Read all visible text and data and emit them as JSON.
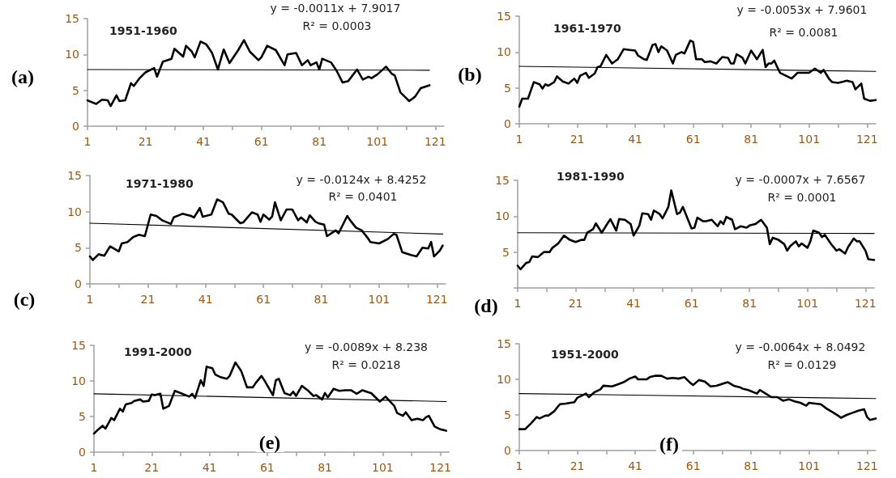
{
  "chart_data": [
    {
      "type": "line",
      "title": "1951-1960",
      "xlim": [
        1,
        124
      ],
      "xticks": [
        1,
        {
          "value": 11,
          "label": null
        },
        21,
        {
          "value": 31,
          "label": null
        },
        41,
        {
          "value": 51,
          "label": null
        },
        61,
        {
          "value": 71,
          "label": null
        },
        81,
        {
          "value": 91,
          "label": null
        },
        101,
        {
          "value": 111,
          "label": null
        },
        121
      ],
      "ylim": [
        0,
        15
      ],
      "yticks": [
        0,
        5,
        10,
        15
      ],
      "grid": false,
      "marker": "none",
      "series": [
        {
          "color": "#000000",
          "x": [
            1,
            4,
            6,
            8,
            9,
            11,
            12,
            14,
            16,
            17,
            19,
            21,
            24,
            25,
            27,
            30,
            31,
            34,
            35,
            37,
            38,
            40,
            42,
            44,
            46,
            48,
            50,
            53,
            55,
            57,
            60,
            61,
            63,
            66,
            69,
            70,
            73,
            75,
            77,
            78,
            80,
            81,
            82,
            85,
            87,
            89,
            91,
            94,
            96,
            98,
            99,
            101,
            104,
            106,
            107,
            109,
            111,
            112,
            114,
            116,
            119
          ],
          "values": [
            3.6,
            3.1,
            3.7,
            3.6,
            2.8,
            4.3,
            3.5,
            3.6,
            6.0,
            5.6,
            6.7,
            7.5,
            8.1,
            6.9,
            9.0,
            9.4,
            10.8,
            9.7,
            11.2,
            10.4,
            9.6,
            11.8,
            11.4,
            10.2,
            7.9,
            10.7,
            8.8,
            10.6,
            12.0,
            10.4,
            9.2,
            9.6,
            11.2,
            10.6,
            8.5,
            10.0,
            10.2,
            8.5,
            9.2,
            8.5,
            8.9,
            7.9,
            9.4,
            8.9,
            7.7,
            6.1,
            6.3,
            7.9,
            6.5,
            6.9,
            6.7,
            7.2,
            8.3,
            7.3,
            7.1,
            4.7,
            3.9,
            3.5,
            4.1,
            5.3,
            5.7
          ]
        },
        {
          "type": "line",
          "color": "#000000",
          "x": [
            1,
            119
          ],
          "values": [
            7.9,
            7.8
          ]
        }
      ],
      "annotations": [
        "y = -0.0011x + 7.9017",
        "R² = 0.0003",
        "(a)"
      ]
    },
    {
      "type": "line",
      "title": "1961-1970",
      "xlim": [
        1,
        124
      ],
      "xticks": [
        1,
        {
          "value": 11,
          "label": null
        },
        21,
        {
          "value": 31,
          "label": null
        },
        41,
        {
          "value": 51,
          "label": null
        },
        61,
        {
          "value": 71,
          "label": null
        },
        81,
        {
          "value": 91,
          "label": null
        },
        101,
        {
          "value": 111,
          "label": null
        },
        121
      ],
      "ylim": [
        0,
        15
      ],
      "yticks": [
        0,
        5,
        10,
        15
      ],
      "grid": false,
      "marker": "none",
      "series": [
        {
          "color": "#000000",
          "x": [
            1,
            2,
            4,
            6,
            8,
            9,
            10,
            11,
            13,
            14,
            16,
            18,
            20,
            21,
            22,
            24,
            25,
            27,
            28,
            29,
            31,
            33,
            35,
            37,
            39,
            41,
            42,
            44,
            45,
            47,
            48,
            49,
            50,
            52,
            54,
            55,
            57,
            58,
            60,
            61,
            62,
            64,
            65,
            67,
            69,
            71,
            73,
            74,
            75,
            76,
            78,
            79,
            81,
            83,
            85,
            86,
            87,
            88,
            89,
            90,
            91,
            93,
            95,
            97,
            99,
            101,
            103,
            105,
            106,
            108,
            109,
            111,
            113,
            114,
            116,
            117,
            119,
            120,
            122,
            124
          ],
          "values": [
            2.4,
            3.5,
            3.5,
            5.8,
            5.5,
            4.9,
            5.5,
            5.3,
            5.8,
            6.6,
            5.9,
            5.6,
            6.3,
            5.7,
            6.7,
            7.1,
            6.4,
            7.0,
            7.9,
            8.0,
            9.6,
            8.4,
            9.0,
            10.4,
            10.3,
            10.2,
            9.5,
            9.0,
            8.9,
            11.0,
            11.1,
            10.0,
            10.8,
            10.2,
            8.4,
            9.6,
            10.0,
            9.8,
            11.6,
            11.4,
            9.0,
            9.0,
            8.6,
            8.7,
            8.4,
            9.3,
            9.2,
            8.4,
            8.4,
            9.7,
            9.2,
            8.4,
            10.2,
            9.0,
            10.3,
            7.9,
            8.4,
            8.4,
            8.8,
            7.9,
            7.1,
            6.7,
            6.3,
            7.1,
            7.1,
            7.1,
            7.7,
            7.1,
            7.5,
            6.2,
            5.8,
            5.7,
            5.9,
            6.0,
            5.8,
            4.8,
            5.6,
            3.5,
            3.2,
            3.3
          ]
        },
        {
          "type": "line",
          "color": "#000000",
          "x": [
            1,
            124
          ],
          "values": [
            8.0,
            7.3
          ]
        }
      ],
      "annotations": [
        "y = -0.0053x + 7.9601",
        "R² = 0.0081",
        "(b)"
      ]
    },
    {
      "type": "line",
      "title": "1971-1980",
      "xlim": [
        1,
        124
      ],
      "xticks": [
        1,
        {
          "value": 11,
          "label": null
        },
        21,
        {
          "value": 31,
          "label": null
        },
        41,
        {
          "value": 51,
          "label": null
        },
        61,
        {
          "value": 71,
          "label": null
        },
        81,
        {
          "value": 91,
          "label": null
        },
        101,
        {
          "value": 111,
          "label": null
        },
        121
      ],
      "ylim": [
        0,
        15
      ],
      "yticks": [
        0,
        5,
        10,
        15
      ],
      "grid": false,
      "marker": "none",
      "series": [
        {
          "color": "#000000",
          "x": [
            1,
            2,
            4,
            6,
            8,
            11,
            12,
            14,
            16,
            18,
            20,
            22,
            24,
            26,
            29,
            30,
            33,
            36,
            37,
            39,
            40,
            43,
            45,
            47,
            49,
            50,
            53,
            54,
            57,
            59,
            60,
            61,
            63,
            64,
            65,
            67,
            69,
            71,
            73,
            74,
            76,
            77,
            79,
            80,
            82,
            83,
            86,
            87,
            90,
            91,
            93,
            95,
            97,
            98,
            101,
            104,
            106,
            107,
            109,
            112,
            114,
            116,
            118,
            119,
            120,
            122,
            123
          ],
          "values": [
            3.8,
            3.3,
            4.1,
            3.9,
            5.2,
            4.5,
            5.6,
            5.8,
            6.5,
            6.8,
            6.6,
            9.6,
            9.4,
            8.8,
            8.3,
            9.2,
            9.7,
            9.4,
            9.2,
            10.5,
            9.3,
            9.6,
            11.7,
            11.3,
            9.7,
            9.6,
            8.4,
            8.5,
            9.9,
            9.6,
            8.6,
            9.6,
            8.9,
            9.3,
            11.3,
            8.8,
            10.3,
            10.3,
            8.8,
            9.2,
            8.5,
            9.5,
            8.6,
            8.4,
            8.2,
            6.6,
            7.4,
            7.0,
            9.4,
            8.8,
            7.8,
            7.4,
            6.4,
            5.8,
            5.6,
            6.2,
            6.9,
            6.8,
            4.4,
            4.0,
            3.8,
            5.0,
            4.9,
            5.8,
            3.8,
            4.6,
            5.3
          ]
        },
        {
          "type": "line",
          "color": "#000000",
          "x": [
            1,
            123
          ],
          "values": [
            8.4,
            6.9
          ]
        }
      ],
      "annotations": [
        "y = -0.0124x + 8.4252",
        "R² = 0.0401",
        "(c)"
      ]
    },
    {
      "type": "line",
      "title": "1981-1990",
      "xlim": [
        1,
        124
      ],
      "xticks": [
        1,
        {
          "value": 11,
          "label": null
        },
        21,
        {
          "value": 31,
          "label": null
        },
        41,
        {
          "value": 51,
          "label": null
        },
        61,
        {
          "value": 71,
          "label": null
        },
        81,
        {
          "value": 91,
          "label": null
        },
        101,
        {
          "value": 111,
          "label": null
        },
        121
      ],
      "ylim": [
        0,
        15
      ],
      "yticks": [
        {
          "value": 0,
          "label": null
        },
        5,
        10,
        15
      ],
      "grid": false,
      "marker": "none",
      "series": [
        {
          "color": "#000000",
          "x": [
            1,
            2,
            4,
            5,
            6,
            8,
            10,
            12,
            13,
            15,
            17,
            19,
            21,
            23,
            24,
            25,
            27,
            28,
            30,
            32,
            33,
            35,
            36,
            38,
            40,
            41,
            43,
            44,
            46,
            47,
            48,
            50,
            51,
            53,
            54,
            56,
            57,
            58,
            61,
            62,
            63,
            65,
            66,
            68,
            70,
            71,
            72,
            73,
            75,
            76,
            78,
            80,
            81,
            83,
            85,
            87,
            88,
            89,
            91,
            93,
            94,
            95,
            97,
            98,
            99,
            101,
            102,
            103,
            105,
            106,
            107,
            109,
            111,
            112,
            114,
            115,
            117,
            118,
            119,
            121,
            122,
            124
          ],
          "values": [
            3.1,
            2.6,
            3.5,
            3.6,
            4.4,
            4.3,
            5.0,
            5.0,
            5.6,
            6.2,
            7.3,
            6.7,
            6.4,
            6.7,
            6.7,
            7.7,
            8.2,
            9.0,
            7.7,
            9.0,
            9.6,
            8.0,
            9.6,
            9.5,
            8.9,
            7.3,
            8.7,
            10.4,
            10.3,
            9.5,
            10.8,
            10.3,
            9.7,
            11.3,
            13.6,
            10.3,
            10.5,
            11.3,
            8.3,
            8.4,
            9.8,
            9.3,
            9.3,
            9.5,
            8.6,
            9.3,
            8.9,
            9.9,
            9.5,
            8.2,
            8.6,
            8.4,
            8.7,
            8.9,
            9.5,
            8.4,
            6.1,
            7.0,
            6.7,
            6.1,
            5.2,
            5.8,
            6.5,
            5.8,
            6.2,
            5.6,
            6.5,
            8.0,
            7.7,
            7.1,
            7.4,
            6.2,
            5.2,
            5.4,
            4.8,
            5.7,
            6.9,
            6.5,
            6.5,
            5.2,
            4.0,
            3.9
          ]
        },
        {
          "type": "line",
          "color": "#000000",
          "x": [
            1,
            124
          ],
          "values": [
            7.7,
            7.6
          ]
        }
      ],
      "annotations": [
        "y = -0.0007x + 7.6567",
        "R² = 0.0001",
        "(d)"
      ]
    },
    {
      "type": "line",
      "title": "1991-2000",
      "xlim": [
        1,
        124
      ],
      "xticks": [
        1,
        {
          "value": 11,
          "label": null
        },
        21,
        {
          "value": 31,
          "label": null
        },
        41,
        {
          "value": 51,
          "label": null
        },
        61,
        {
          "value": 71,
          "label": null
        },
        81,
        {
          "value": 91,
          "label": null
        },
        101,
        {
          "value": 111,
          "label": null
        },
        121
      ],
      "ylim": [
        0,
        15
      ],
      "yticks": [
        0,
        5,
        10,
        15
      ],
      "grid": false,
      "marker": "none",
      "series": [
        {
          "color": "#000000",
          "x": [
            1,
            2,
            4,
            5,
            7,
            8,
            10,
            11,
            12,
            14,
            15,
            17,
            18,
            20,
            21,
            22,
            24,
            25,
            27,
            29,
            31,
            34,
            35,
            36,
            38,
            39,
            40,
            42,
            43,
            45,
            47,
            48,
            50,
            52,
            54,
            56,
            57,
            59,
            60,
            63,
            64,
            65,
            67,
            69,
            70,
            71,
            73,
            75,
            77,
            78,
            80,
            81,
            82,
            84,
            86,
            88,
            90,
            92,
            94,
            96,
            97,
            99,
            100,
            102,
            105,
            106,
            108,
            109,
            111,
            113,
            115,
            116,
            117,
            119,
            121,
            123
          ],
          "values": [
            2.6,
            3.0,
            3.7,
            3.3,
            4.8,
            4.5,
            6.1,
            5.7,
            6.7,
            6.9,
            7.2,
            7.4,
            7.1,
            7.2,
            8.1,
            8.0,
            8.2,
            6.1,
            6.5,
            8.6,
            8.3,
            7.8,
            8.2,
            7.6,
            10.1,
            9.3,
            12.0,
            11.8,
            10.9,
            10.5,
            10.3,
            10.7,
            12.6,
            11.4,
            9.1,
            9.1,
            9.7,
            10.7,
            10.1,
            8.0,
            10.1,
            10.3,
            8.3,
            8.0,
            8.5,
            7.9,
            9.3,
            8.7,
            7.9,
            8.0,
            7.4,
            8.3,
            7.7,
            8.9,
            8.6,
            8.7,
            8.7,
            8.2,
            8.7,
            8.4,
            8.3,
            7.5,
            7.1,
            7.8,
            6.5,
            5.5,
            5.1,
            5.6,
            4.5,
            4.7,
            4.5,
            4.9,
            5.1,
            3.6,
            3.2,
            3.0
          ]
        },
        {
          "type": "line",
          "color": "#000000",
          "x": [
            1,
            123
          ],
          "values": [
            8.2,
            7.1
          ]
        }
      ],
      "annotations": [
        "y = -0.0089x + 8.238",
        "R² = 0.0218",
        "(e)"
      ]
    },
    {
      "type": "line",
      "title": "1951-2000",
      "xlim": [
        1,
        124
      ],
      "xticks": [
        1,
        {
          "value": 11,
          "label": null
        },
        21,
        {
          "value": 31,
          "label": null
        },
        41,
        {
          "value": 51,
          "label": null
        },
        61,
        {
          "value": 71,
          "label": null
        },
        81,
        {
          "value": 91,
          "label": null
        },
        101,
        {
          "value": 111,
          "label": null
        },
        121
      ],
      "ylim": [
        0,
        15
      ],
      "yticks": [
        0,
        5,
        10,
        15
      ],
      "grid": false,
      "marker": "none",
      "series": [
        {
          "color": "#000000",
          "x": [
            1,
            3,
            5,
            7,
            8,
            10,
            11,
            13,
            15,
            17,
            20,
            21,
            24,
            25,
            27,
            29,
            30,
            33,
            35,
            37,
            39,
            41,
            42,
            45,
            46,
            48,
            50,
            52,
            54,
            56,
            58,
            60,
            61,
            63,
            65,
            67,
            69,
            72,
            73,
            75,
            77,
            78,
            80,
            83,
            84,
            86,
            88,
            90,
            92,
            94,
            96,
            98,
            100,
            101,
            103,
            105,
            107,
            109,
            111,
            112,
            114,
            116,
            118,
            120,
            121,
            122,
            124
          ],
          "values": [
            3.0,
            3.0,
            3.8,
            4.7,
            4.5,
            4.9,
            4.9,
            5.5,
            6.5,
            6.6,
            6.8,
            7.4,
            8.0,
            7.5,
            8.2,
            8.6,
            9.1,
            9.0,
            9.3,
            9.6,
            10.1,
            10.4,
            10.0,
            10.0,
            10.3,
            10.5,
            10.5,
            10.1,
            10.2,
            10.1,
            10.3,
            9.5,
            9.2,
            9.9,
            9.7,
            9.0,
            9.1,
            9.5,
            9.6,
            9.1,
            8.9,
            8.7,
            8.5,
            8.0,
            8.5,
            8.0,
            7.5,
            7.5,
            7.0,
            7.2,
            6.9,
            6.7,
            6.3,
            6.7,
            6.6,
            6.5,
            5.9,
            5.4,
            4.9,
            4.6,
            5.0,
            5.3,
            5.6,
            5.8,
            4.7,
            4.3,
            4.5
          ]
        },
        {
          "type": "line",
          "color": "#000000",
          "x": [
            1,
            124
          ],
          "values": [
            8.0,
            7.3
          ]
        }
      ],
      "annotations": [
        "y = -0.0064x + 8.0492",
        "R² = 0.0129",
        "(f)"
      ]
    }
  ]
}
